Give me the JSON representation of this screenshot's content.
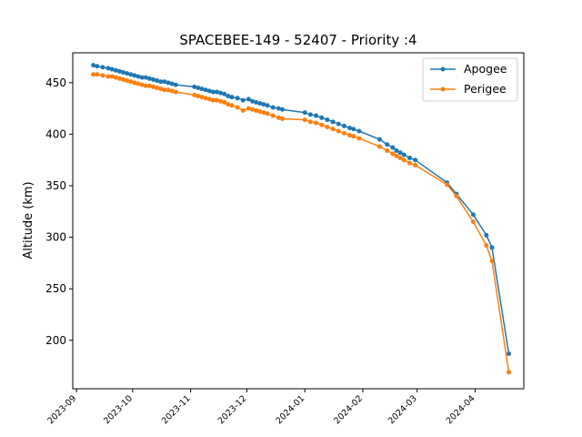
{
  "chart_data": {
    "type": "line",
    "title": "SPACEBEE-149 - 52407 - Priority :4",
    "xlabel": "",
    "ylabel": "Altitude (km)",
    "x_type": "date",
    "xlim": [
      "2023-08-30",
      "2024-04-27"
    ],
    "ylim": [
      153,
      479
    ],
    "grid": false,
    "legend_position": "top-right",
    "xticks": [
      "2023-09",
      "2023-10",
      "2023-11",
      "2023-12",
      "2024-01",
      "2024-02",
      "2024-03",
      "2024-04"
    ],
    "yticks": [
      200,
      250,
      300,
      350,
      400,
      450
    ],
    "series": [
      {
        "name": "Apogee",
        "color": "#1f77b4",
        "x": [
          "2023-09-10",
          "2023-09-12",
          "2023-09-15",
          "2023-09-18",
          "2023-09-20",
          "2023-09-22",
          "2023-09-24",
          "2023-09-26",
          "2023-09-28",
          "2023-09-30",
          "2023-10-02",
          "2023-10-04",
          "2023-10-06",
          "2023-10-08",
          "2023-10-10",
          "2023-10-12",
          "2023-10-14",
          "2023-10-16",
          "2023-10-18",
          "2023-10-20",
          "2023-10-22",
          "2023-10-24",
          "2023-11-03",
          "2023-11-05",
          "2023-11-07",
          "2023-11-09",
          "2023-11-11",
          "2023-11-13",
          "2023-11-15",
          "2023-11-17",
          "2023-11-19",
          "2023-11-21",
          "2023-11-23",
          "2023-11-26",
          "2023-11-29",
          "2023-12-02",
          "2023-12-04",
          "2023-12-06",
          "2023-12-08",
          "2023-12-10",
          "2023-12-12",
          "2023-12-15",
          "2023-12-18",
          "2023-12-20",
          "2024-01-01",
          "2024-01-04",
          "2024-01-07",
          "2024-01-10",
          "2024-01-13",
          "2024-01-16",
          "2024-01-19",
          "2024-01-22",
          "2024-01-25",
          "2024-01-27",
          "2024-01-30",
          "2024-02-10",
          "2024-02-14",
          "2024-02-17",
          "2024-02-19",
          "2024-02-21",
          "2024-02-23",
          "2024-02-26",
          "2024-02-29",
          "2024-03-17",
          "2024-03-22",
          "2024-03-31",
          "2024-04-07",
          "2024-04-10",
          "2024-04-19"
        ],
        "values": [
          467,
          466,
          465,
          464,
          463,
          462,
          461,
          460,
          459,
          458,
          457,
          456,
          455,
          455,
          454,
          453,
          452,
          451,
          451,
          450,
          449,
          448,
          446,
          445,
          444,
          443,
          442,
          441,
          441,
          440,
          439,
          437,
          436,
          435,
          433,
          434,
          432,
          431,
          430,
          429,
          428,
          426,
          425,
          424,
          421,
          419,
          418,
          416,
          414,
          412,
          410,
          408,
          406,
          405,
          403,
          395,
          390,
          387,
          384,
          382,
          380,
          377,
          375,
          353,
          342,
          322,
          302,
          290,
          187
        ]
      },
      {
        "name": "Perigee",
        "color": "#ff7f0e",
        "x": [
          "2023-09-10",
          "2023-09-12",
          "2023-09-15",
          "2023-09-18",
          "2023-09-20",
          "2023-09-22",
          "2023-09-24",
          "2023-09-26",
          "2023-09-28",
          "2023-09-30",
          "2023-10-02",
          "2023-10-04",
          "2023-10-06",
          "2023-10-08",
          "2023-10-10",
          "2023-10-12",
          "2023-10-14",
          "2023-10-16",
          "2023-10-18",
          "2023-10-20",
          "2023-10-22",
          "2023-10-24",
          "2023-11-03",
          "2023-11-05",
          "2023-11-07",
          "2023-11-09",
          "2023-11-11",
          "2023-11-13",
          "2023-11-15",
          "2023-11-17",
          "2023-11-19",
          "2023-11-21",
          "2023-11-23",
          "2023-11-26",
          "2023-11-29",
          "2023-12-02",
          "2023-12-04",
          "2023-12-06",
          "2023-12-08",
          "2023-12-10",
          "2023-12-12",
          "2023-12-15",
          "2023-12-18",
          "2023-12-20",
          "2024-01-01",
          "2024-01-04",
          "2024-01-07",
          "2024-01-10",
          "2024-01-13",
          "2024-01-16",
          "2024-01-19",
          "2024-01-22",
          "2024-01-25",
          "2024-01-27",
          "2024-01-30",
          "2024-02-10",
          "2024-02-14",
          "2024-02-17",
          "2024-02-19",
          "2024-02-21",
          "2024-02-23",
          "2024-02-26",
          "2024-02-29",
          "2024-03-17",
          "2024-03-22",
          "2024-03-31",
          "2024-04-07",
          "2024-04-10",
          "2024-04-19"
        ],
        "values": [
          458,
          458,
          457,
          456,
          456,
          455,
          454,
          453,
          452,
          451,
          450,
          449,
          448,
          447,
          447,
          446,
          445,
          444,
          443,
          443,
          442,
          441,
          438,
          437,
          436,
          435,
          434,
          433,
          433,
          432,
          431,
          429,
          428,
          426,
          423,
          425,
          424,
          423,
          422,
          421,
          420,
          418,
          416,
          415,
          414,
          412,
          411,
          409,
          407,
          405,
          403,
          401,
          399,
          398,
          396,
          388,
          384,
          381,
          379,
          377,
          375,
          372,
          370,
          351,
          340,
          315,
          292,
          277,
          169
        ]
      }
    ]
  }
}
